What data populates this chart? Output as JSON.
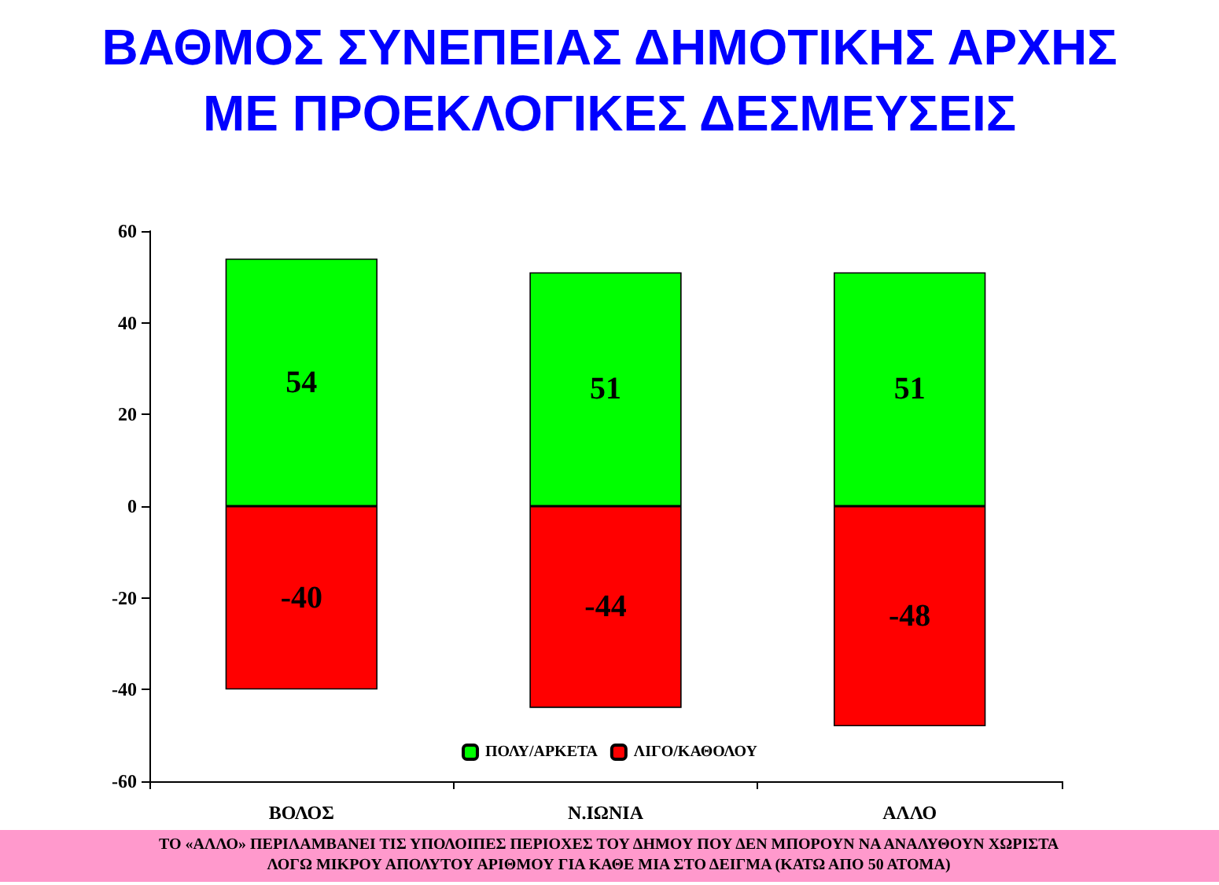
{
  "chart_data": {
    "type": "bar",
    "title": "ΒΑΘΜΟΣ ΣΥΝΕΠΕΙΑΣ ΔΗΜΟΤΙΚΗΣ ΑΡΧΗΣ\nΜΕ ΠΡΟΕΚΛΟΓΙΚΕΣ ΔΕΣΜΕΥΣΕΙΣ",
    "categories": [
      "ΒΟΛΟΣ",
      "Ν.ΙΩΝΙΑ",
      "ΑΛΛΟ"
    ],
    "series": [
      {
        "name": "ΠΟΛΥ/ΑΡΚΕΤΑ",
        "color": "#00ff00",
        "values": [
          54,
          51,
          51
        ]
      },
      {
        "name": "ΛΙΓΟ/ΚΑΘΟΛΟΥ",
        "color": "#ff0000",
        "values": [
          -40,
          -44,
          -48
        ]
      }
    ],
    "stacked": true,
    "data_labels": true,
    "ylim": [
      -60,
      60
    ],
    "yticks": [
      -60,
      -40,
      -20,
      0,
      20,
      40,
      60
    ],
    "grid": false,
    "legend": "bottom",
    "annotations": [
      "ΤΟ «ΑΛΛΟ» ΠΕΡΙΛΑΜΒΑΝΕΙ ΤΙΣ ΥΠΟΛΟΙΠΕΣ ΠΕΡΙΟΧΕΣ ΤΟΥ ΔΗΜΟΥ ΠΟΥ ΔΕΝ ΜΠΟΡΟΥΝ ΝΑ ΑΝΑΛΥΘΟΥΝ ΧΩΡΙΣΤΑ\nΛΟΓΩ ΜΙΚΡΟΥ ΑΠΟΛΥΤΟΥ ΑΡΙΘΜΟΥ ΓΙΑ ΚΑΘΕ ΜΙΑ ΣΤΟ ΔΕΙΓΜΑ (ΚΑΤΩ ΑΠΟ 50 ΑΤΟΜΑ)"
    ]
  }
}
